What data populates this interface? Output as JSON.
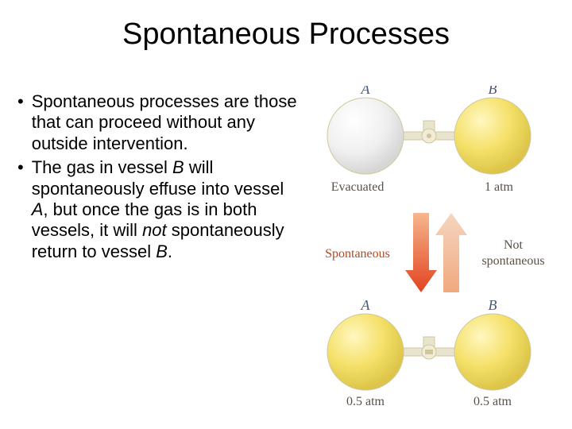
{
  "title": "Spontaneous Processes",
  "bullets": [
    {
      "html": "Spontaneous processes are those that can proceed without any outside intervention."
    },
    {
      "html": "The gas in vessel <em>B</em> will spontaneously effuse into vessel <em>A</em>, but once the gas is in both vessels, it will <em>not</em> spontaneously return to vessel <em>B</em>."
    }
  ],
  "diagram": {
    "top": {
      "A": {
        "label": "A",
        "fill": "evacuated",
        "caption": "Evacuated"
      },
      "B": {
        "label": "B",
        "fill": "gas",
        "caption": "1 atm"
      }
    },
    "arrows": {
      "down_label": "Spontaneous",
      "up_label": "Not spontaneous",
      "down_color_top": "#f6b78f",
      "down_color_bottom": "#e2431e",
      "up_color_top": "#f6d5c0",
      "up_color_bottom": "#f0a97f"
    },
    "bottom": {
      "A": {
        "label": "A",
        "fill": "half",
        "caption": "0.5 atm"
      },
      "B": {
        "label": "B",
        "fill": "half",
        "caption": "0.5 atm"
      }
    },
    "colors": {
      "vessel_stroke": "#d0c080",
      "vessel_shadow": "#c9be8f",
      "gas_fill": "#f5e16a",
      "gas_highlight": "#fff7c0",
      "gas_grad_bottom": "#e0c848",
      "evac_fill": "#f2f2f2",
      "evac_highlight": "#ffffff",
      "evac_shadow": "#d8d8d8",
      "label_italic": "#4a5a7a",
      "text_color": "#5a5045"
    },
    "typography": {
      "vessel_label_fontsize": 18,
      "caption_fontsize": 16,
      "arrow_label_fontsize": 16
    }
  }
}
